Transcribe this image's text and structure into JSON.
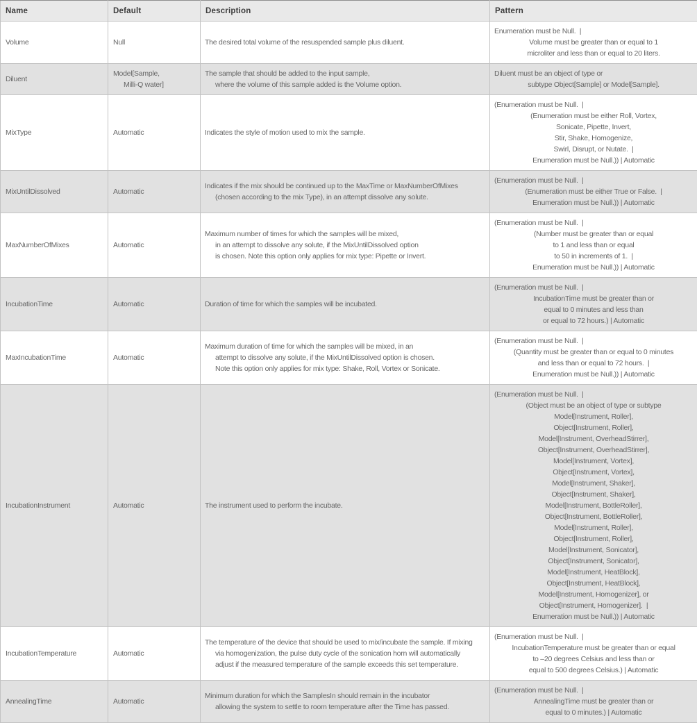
{
  "colors": {
    "outer_border": "#8e8e8e",
    "inner_border": "#c2c2c2",
    "row_alt_bg": "#e1e1e1",
    "row_bg": "#ffffff",
    "header_bg": "#e9e9e9",
    "header_text": "#3d3d3d",
    "body_text": "#666666"
  },
  "table": {
    "columns": [
      "Name",
      "Default",
      "Description",
      "Pattern"
    ],
    "rows": [
      {
        "name": "Volume",
        "default": [
          "Null"
        ],
        "description": [
          "The desired total volume of the resuspended sample plus diluent."
        ],
        "pattern": [
          "Enumeration must be Null.  |",
          "Volume must be greater than or equal to 1",
          "microliter and less than or equal to 20 liters."
        ]
      },
      {
        "name": "Diluent",
        "default": [
          "Model[Sample,",
          "Milli-Q water]"
        ],
        "description": [
          "The sample that should be added to the input sample,",
          "where the volume of this sample added is the Volume option."
        ],
        "pattern": [
          "Diluent must be an object of type or",
          "subtype Object[Sample] or Model[Sample]."
        ]
      },
      {
        "name": "MixType",
        "default": [
          "Automatic"
        ],
        "description": [
          "Indicates the style of motion used to mix the sample."
        ],
        "pattern": [
          "(Enumeration must be Null.  |",
          "(Enumeration must be either Roll, Vortex,",
          "Sonicate, Pipette, Invert,",
          "Stir, Shake, Homogenize,",
          "Swirl, Disrupt, or Nutate.  |",
          "Enumeration must be Null.)) | Automatic"
        ]
      },
      {
        "name": "MixUntilDissolved",
        "default": [
          "Automatic"
        ],
        "description": [
          "Indicates if the mix should be continued up to the MaxTime or MaxNumberOfMixes",
          "(chosen according to the mix Type), in an attempt dissolve any solute."
        ],
        "pattern": [
          "(Enumeration must be Null.  |",
          "(Enumeration must be either True or False.  |",
          "Enumeration must be Null.)) | Automatic"
        ]
      },
      {
        "name": "MaxNumberOfMixes",
        "default": [
          "Automatic"
        ],
        "description": [
          "Maximum number of times for which the samples will be mixed,",
          "in an attempt to dissolve any solute, if the MixUntilDissolved option",
          "is chosen. Note this option only applies for mix type: Pipette or Invert."
        ],
        "pattern": [
          "(Enumeration must be Null.  |",
          "(Number must be greater than or equal",
          "to 1 and less than or equal",
          "to 50 in increments of 1.  |",
          "Enumeration must be Null.)) | Automatic"
        ]
      },
      {
        "name": "IncubationTime",
        "default": [
          "Automatic"
        ],
        "description": [
          "Duration of time for which the samples will be incubated."
        ],
        "pattern": [
          "(Enumeration must be Null.  |",
          "IncubationTime must be greater than or",
          "equal to 0 minutes and less than",
          "or equal to 72 hours.) | Automatic"
        ]
      },
      {
        "name": "MaxIncubationTime",
        "default": [
          "Automatic"
        ],
        "description": [
          "Maximum duration of time for which the samples will be mixed, in an",
          "attempt to dissolve any solute, if the MixUntilDissolved option is chosen.",
          "Note this option only applies for mix type: Shake, Roll, Vortex or Sonicate."
        ],
        "pattern": [
          "(Enumeration must be Null.  |",
          "(Quantity must be greater than or equal to 0 minutes",
          "and less than or equal to 72 hours.  |",
          "Enumeration must be Null.)) | Automatic"
        ]
      },
      {
        "name": "IncubationInstrument",
        "default": [
          "Automatic"
        ],
        "description": [
          "The instrument used to perform the incubate."
        ],
        "pattern": [
          "(Enumeration must be Null.  |",
          "(Object must be an object of type or subtype",
          "Model[Instrument, Roller],",
          "Object[Instrument, Roller],",
          "Model[Instrument, OverheadStirrer],",
          "Object[Instrument, OverheadStirrer],",
          "Model[Instrument, Vortex],",
          "Object[Instrument, Vortex],",
          "Model[Instrument, Shaker],",
          "Object[Instrument, Shaker],",
          "Model[Instrument, BottleRoller],",
          "Object[Instrument, BottleRoller],",
          "Model[Instrument, Roller],",
          "Object[Instrument, Roller],",
          "Model[Instrument, Sonicator],",
          "Object[Instrument, Sonicator],",
          "Model[Instrument, HeatBlock],",
          "Object[Instrument, HeatBlock],",
          "Model[Instrument, Homogenizer], or",
          "Object[Instrument, Homogenizer].  |",
          "Enumeration must be Null.)) | Automatic"
        ]
      },
      {
        "name": "IncubationTemperature",
        "default": [
          "Automatic"
        ],
        "description": [
          "The temperature of the device that should be used to mix/incubate the sample. If mixing",
          "via homogenization, the pulse duty cycle of the sonication horn will automatically",
          "adjust if the measured temperature of the sample exceeds this set temperature."
        ],
        "pattern": [
          "(Enumeration must be Null.  |",
          "IncubationTemperature must be greater than or equal",
          "to –20 degrees Celsius and less than or",
          "equal to 500 degrees Celsius.) | Automatic"
        ]
      },
      {
        "name": "AnnealingTime",
        "default": [
          "Automatic"
        ],
        "description": [
          "Minimum duration for which the SamplesIn should remain in the incubator",
          "allowing the system to settle to room temperature after the Time has passed."
        ],
        "pattern": [
          "(Enumeration must be Null.  |",
          "AnnealingTime must be greater than or",
          "equal to 0 minutes.) | Automatic"
        ]
      }
    ]
  }
}
